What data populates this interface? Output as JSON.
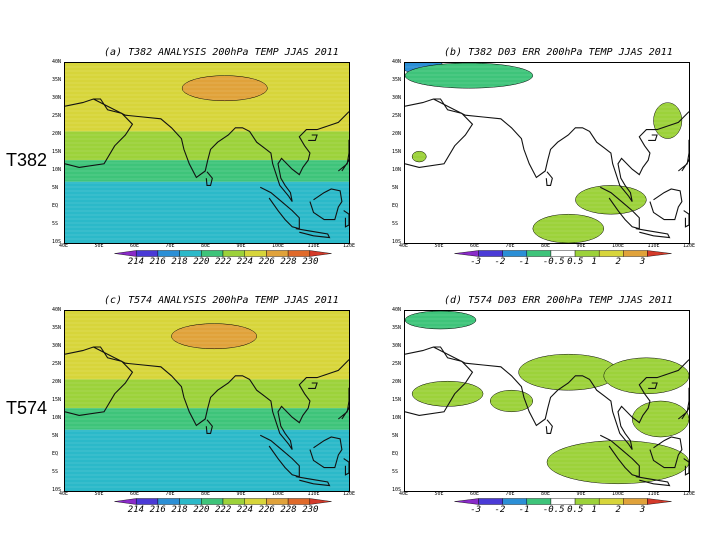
{
  "row_labels": [
    "T382",
    "T574"
  ],
  "panels": [
    {
      "id": "a",
      "title": "(a)  T382 ANALYSIS 200hPa TEMP JJAS 2011",
      "lat_labels": [
        "40N",
        "35N",
        "30N",
        "25N",
        "20N",
        "15N",
        "10N",
        "5N",
        "EQ",
        "5S",
        "10S"
      ],
      "lon_labels": [
        "40E",
        "50E",
        "60E",
        "70E",
        "80E",
        "90E",
        "100E",
        "110E",
        "120E"
      ],
      "colorbar_labels": [
        "214",
        "216",
        "218",
        "220",
        "222",
        "224",
        "226",
        "228",
        "230"
      ],
      "bands": [
        {
          "from_lat": 40,
          "to_lat": 21,
          "color": "#d7d53a"
        },
        {
          "from_lat": 21,
          "to_lat": 13,
          "color": "#9cd23a"
        },
        {
          "from_lat": 13,
          "to_lat": 7,
          "color": "#3ec47a"
        },
        {
          "from_lat": 7,
          "to_lat": -10,
          "color": "#2bb9c9"
        }
      ],
      "blobs": [
        {
          "lon": 85,
          "lat": 33,
          "rlon": 12,
          "rlat": 3.5,
          "color": "#e0a23a"
        }
      ]
    },
    {
      "id": "b",
      "title": "(b)  T382 D03 ERR 200hPa TEMP JJAS 2011",
      "lat_labels": [
        "40N",
        "35N",
        "30N",
        "25N",
        "20N",
        "15N",
        "10N",
        "5N",
        "EQ",
        "5S",
        "10S"
      ],
      "lon_labels": [
        "40E",
        "50E",
        "60E",
        "70E",
        "80E",
        "90E",
        "100E",
        "110E",
        "120E"
      ],
      "colorbar_labels": [
        "-3",
        "-2",
        "-1",
        "-0.5",
        "0.5",
        "1",
        "2",
        "3"
      ],
      "bands": [],
      "blobs": [
        {
          "lon": 45,
          "lat": 39,
          "rlon": 6,
          "rlat": 2,
          "color": "#2b8fd6"
        },
        {
          "lon": 58,
          "lat": 36.5,
          "rlon": 18,
          "rlat": 3.5,
          "color": "#3ec47a"
        },
        {
          "lon": 44,
          "lat": 14,
          "rlon": 2,
          "rlat": 1.5,
          "color": "#9cd23a"
        },
        {
          "lon": 98,
          "lat": 2,
          "rlon": 10,
          "rlat": 4,
          "color": "#9cd23a"
        },
        {
          "lon": 86,
          "lat": -6,
          "rlon": 10,
          "rlat": 4,
          "color": "#9cd23a"
        },
        {
          "lon": 114,
          "lat": 24,
          "rlon": 4,
          "rlat": 5,
          "color": "#9cd23a"
        }
      ]
    },
    {
      "id": "c",
      "title": "(c)  T574 ANALYSIS 200hPa TEMP JJAS 2011",
      "lat_labels": [
        "40N",
        "35N",
        "30N",
        "25N",
        "20N",
        "15N",
        "10N",
        "5N",
        "EQ",
        "5S",
        "10S"
      ],
      "lon_labels": [
        "40E",
        "50E",
        "60E",
        "70E",
        "80E",
        "90E",
        "100E",
        "110E",
        "120E"
      ],
      "colorbar_labels": [
        "214",
        "216",
        "218",
        "220",
        "222",
        "224",
        "226",
        "228",
        "230"
      ],
      "bands": [
        {
          "from_lat": 40,
          "to_lat": 21,
          "color": "#d7d53a"
        },
        {
          "from_lat": 21,
          "to_lat": 13,
          "color": "#9cd23a"
        },
        {
          "from_lat": 13,
          "to_lat": 7,
          "color": "#3ec47a"
        },
        {
          "from_lat": 7,
          "to_lat": -10,
          "color": "#2bb9c9"
        }
      ],
      "blobs": [
        {
          "lon": 82,
          "lat": 33,
          "rlon": 12,
          "rlat": 3.5,
          "color": "#e0a23a"
        }
      ]
    },
    {
      "id": "d",
      "title": "(d)  T574 D03 ERR 200hPa TEMP JJAS 2011",
      "lat_labels": [
        "40N",
        "35N",
        "30N",
        "25N",
        "20N",
        "15N",
        "10N",
        "5N",
        "EQ",
        "5S",
        "10S"
      ],
      "lon_labels": [
        "40E",
        "50E",
        "60E",
        "70E",
        "80E",
        "90E",
        "100E",
        "110E",
        "120E"
      ],
      "colorbar_labels": [
        "-3",
        "-2",
        "-1",
        "-0.5",
        "0.5",
        "1",
        "2",
        "3"
      ],
      "bands": [],
      "blobs": [
        {
          "lon": 50,
          "lat": 37.5,
          "rlon": 10,
          "rlat": 2.5,
          "color": "#3ec47a"
        },
        {
          "lon": 86,
          "lat": 23,
          "rlon": 14,
          "rlat": 5,
          "color": "#9cd23a"
        },
        {
          "lon": 108,
          "lat": 22,
          "rlon": 12,
          "rlat": 5,
          "color": "#9cd23a"
        },
        {
          "lon": 52,
          "lat": 17,
          "rlon": 10,
          "rlat": 3.5,
          "color": "#9cd23a"
        },
        {
          "lon": 70,
          "lat": 15,
          "rlon": 6,
          "rlat": 3,
          "color": "#9cd23a"
        },
        {
          "lon": 100,
          "lat": -2,
          "rlon": 20,
          "rlat": 6,
          "color": "#9cd23a"
        },
        {
          "lon": 112,
          "lat": 10,
          "rlon": 8,
          "rlat": 5,
          "color": "#9cd23a"
        }
      ]
    }
  ]
}
